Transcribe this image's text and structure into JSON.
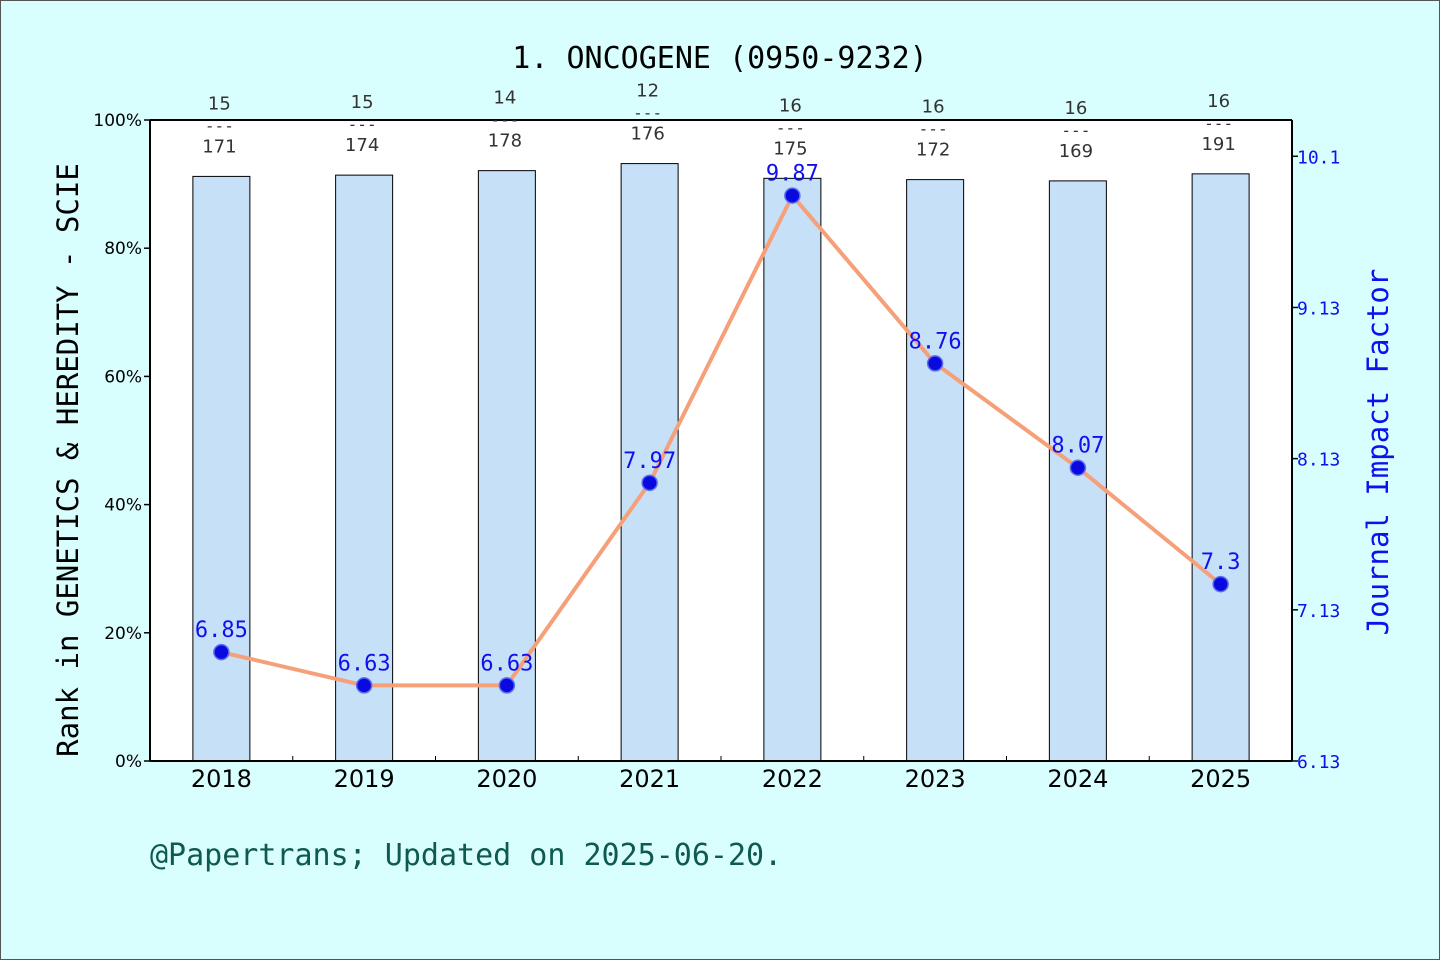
{
  "title": "1. ONCOGENE (0950-9232)",
  "footer": "@Papertrans; Updated on 2025-06-20.",
  "colors": {
    "background": "#d9fefe",
    "bar_fill": "#c5e0f7",
    "line": "#f6a07a",
    "marker": "#0a0adf",
    "right_axis": "#1010ee",
    "footer": "#0e5a4e"
  },
  "chart_data": {
    "type": "bar",
    "title": "1. ONCOGENE (0950-9232)",
    "xlabel": "",
    "ylabel": "Rank in GENETICS & HEREDITY - SCIE",
    "y2label": "Journal Impact Factor",
    "categories": [
      "2018",
      "2019",
      "2020",
      "2021",
      "2022",
      "2023",
      "2024",
      "2025"
    ],
    "y_ticks": [
      "0%",
      "20%",
      "40%",
      "60%",
      "80%",
      "100%"
    ],
    "y_tick_values": [
      0,
      20,
      40,
      60,
      80,
      100
    ],
    "y2_ticks": [
      "6.13",
      "7.13",
      "8.13",
      "9.13",
      "10.1"
    ],
    "y2_tick_values": [
      6.13,
      7.13,
      8.13,
      9.13,
      10.13
    ],
    "ylim": [
      0,
      100
    ],
    "y2lim": [
      6.13,
      10.37
    ],
    "rank_labels": [
      {
        "rank": "15",
        "dash": "---",
        "total": "171"
      },
      {
        "rank": "15",
        "dash": "---",
        "total": "174"
      },
      {
        "rank": "14",
        "dash": "---",
        "total": "178"
      },
      {
        "rank": "12",
        "dash": "---",
        "total": "176"
      },
      {
        "rank": "16",
        "dash": "---",
        "total": "175"
      },
      {
        "rank": "16",
        "dash": "---",
        "total": "172"
      },
      {
        "rank": "16",
        "dash": "---",
        "total": "169"
      },
      {
        "rank": "16",
        "dash": "---",
        "total": "191"
      }
    ],
    "series": [
      {
        "type": "bar",
        "axis": "left",
        "values": [
          91.2,
          91.4,
          92.1,
          93.2,
          90.9,
          90.7,
          90.5,
          91.6
        ]
      },
      {
        "type": "line",
        "axis": "right",
        "values": [
          6.85,
          6.63,
          6.63,
          7.97,
          9.87,
          8.76,
          8.07,
          7.3
        ],
        "labels": [
          "6.85",
          "6.63",
          "6.63",
          "7.97",
          "9.87",
          "8.76",
          "8.07",
          "7.3"
        ]
      }
    ],
    "grid": false,
    "legend": "none"
  }
}
